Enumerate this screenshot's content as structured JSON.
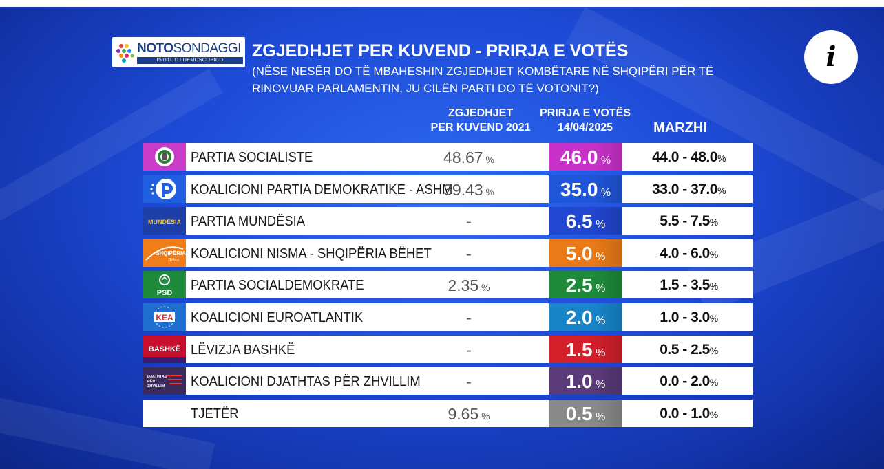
{
  "header": {
    "logo_brand_bold": "NOTO",
    "logo_brand_rest": "SONDAGGI",
    "logo_tagline": "ISTITUTO DEMOSCOPICO",
    "title": "ZGJEDHJET PER KUVEND - PRIRJA E VOTËS",
    "subtitle": "(NËSE NESËR DO TË MBAHESHIN ZGJEDHJET KOMBËTARE NË SHQIPËRI PËR TË RINOVUAR PARLAMENTIN, JU CILËN PARTI DO TË VOTONIT?)",
    "info_label": "i"
  },
  "columns": {
    "col2021_line1": "ZGJEDHJET",
    "col2021_line2": "PER KUVEND 2021",
    "poll_line1": "PRIRJA E VOTËS",
    "poll_line2": "14/04/2025",
    "margin": "MARZHI"
  },
  "chart_data": {
    "type": "table",
    "title": "ZGJEDHJET PER KUVEND - PRIRJA E VOTËS",
    "columns": [
      "ZGJEDHJET PER KUVEND 2021",
      "PRIRJA E VOTËS 14/04/2025",
      "MARZHI"
    ],
    "rows": [
      {
        "party": "PARTIA SOCIALISTE",
        "logo": "ps-rose-logo",
        "color": "#c832c8",
        "result_2021": "48.67",
        "poll": "46.0",
        "poll_value": 46.0,
        "margin": "44.0 - 48.0"
      },
      {
        "party": "KOALICIONI PARTIA DEMOKRATIKE - ASHM",
        "logo": "pd-letter-logo",
        "color": "#1f55d8",
        "result_2021": "39.43",
        "poll": "35.0",
        "poll_value": 35.0,
        "margin": "33.0 - 37.0"
      },
      {
        "party": "PARTIA MUNDËSIA",
        "logo": "mundesia-logo",
        "color": "#2146cf",
        "result_2021": "-",
        "poll": "6.5",
        "poll_value": 6.5,
        "margin": "5.5 - 7.5"
      },
      {
        "party": "KOALICIONI NISMA - SHQIPËRIA BËHET",
        "logo": "shqiperia-behet-logo",
        "color": "#ea7a18",
        "result_2021": "-",
        "poll": "5.0",
        "poll_value": 5.0,
        "margin": "4.0 - 6.0"
      },
      {
        "party": "PARTIA SOCIALDEMOKRATE",
        "logo": "psd-logo",
        "color": "#1e8a3a",
        "result_2021": "2.35",
        "poll": "2.5",
        "poll_value": 2.5,
        "margin": "1.5 - 3.5"
      },
      {
        "party": "KOALICIONI EUROATLANTIK",
        "logo": "kea-logo",
        "color": "#1785c8",
        "result_2021": "-",
        "poll": "2.0",
        "poll_value": 2.0,
        "margin": "1.0 - 3.0"
      },
      {
        "party": "LËVIZJA BASHKË",
        "logo": "bashke-logo",
        "color": "#d21f2a",
        "result_2021": "-",
        "poll": "1.5",
        "poll_value": 1.5,
        "margin": "0.5 - 2.5"
      },
      {
        "party": "KOALICIONI DJATHTAS PËR ZHVILLIM",
        "logo": "djathtas-logo",
        "color": "#5a3a78",
        "result_2021": "-",
        "poll": "1.0",
        "poll_value": 1.0,
        "margin": "0.0 - 2.0"
      },
      {
        "party": "TJETËR",
        "logo": "",
        "color": "#8a8a8a",
        "result_2021": "9.65",
        "poll": "0.5",
        "poll_value": 0.5,
        "margin": "0.0 - 1.0"
      }
    ],
    "percent_sign": "%"
  }
}
